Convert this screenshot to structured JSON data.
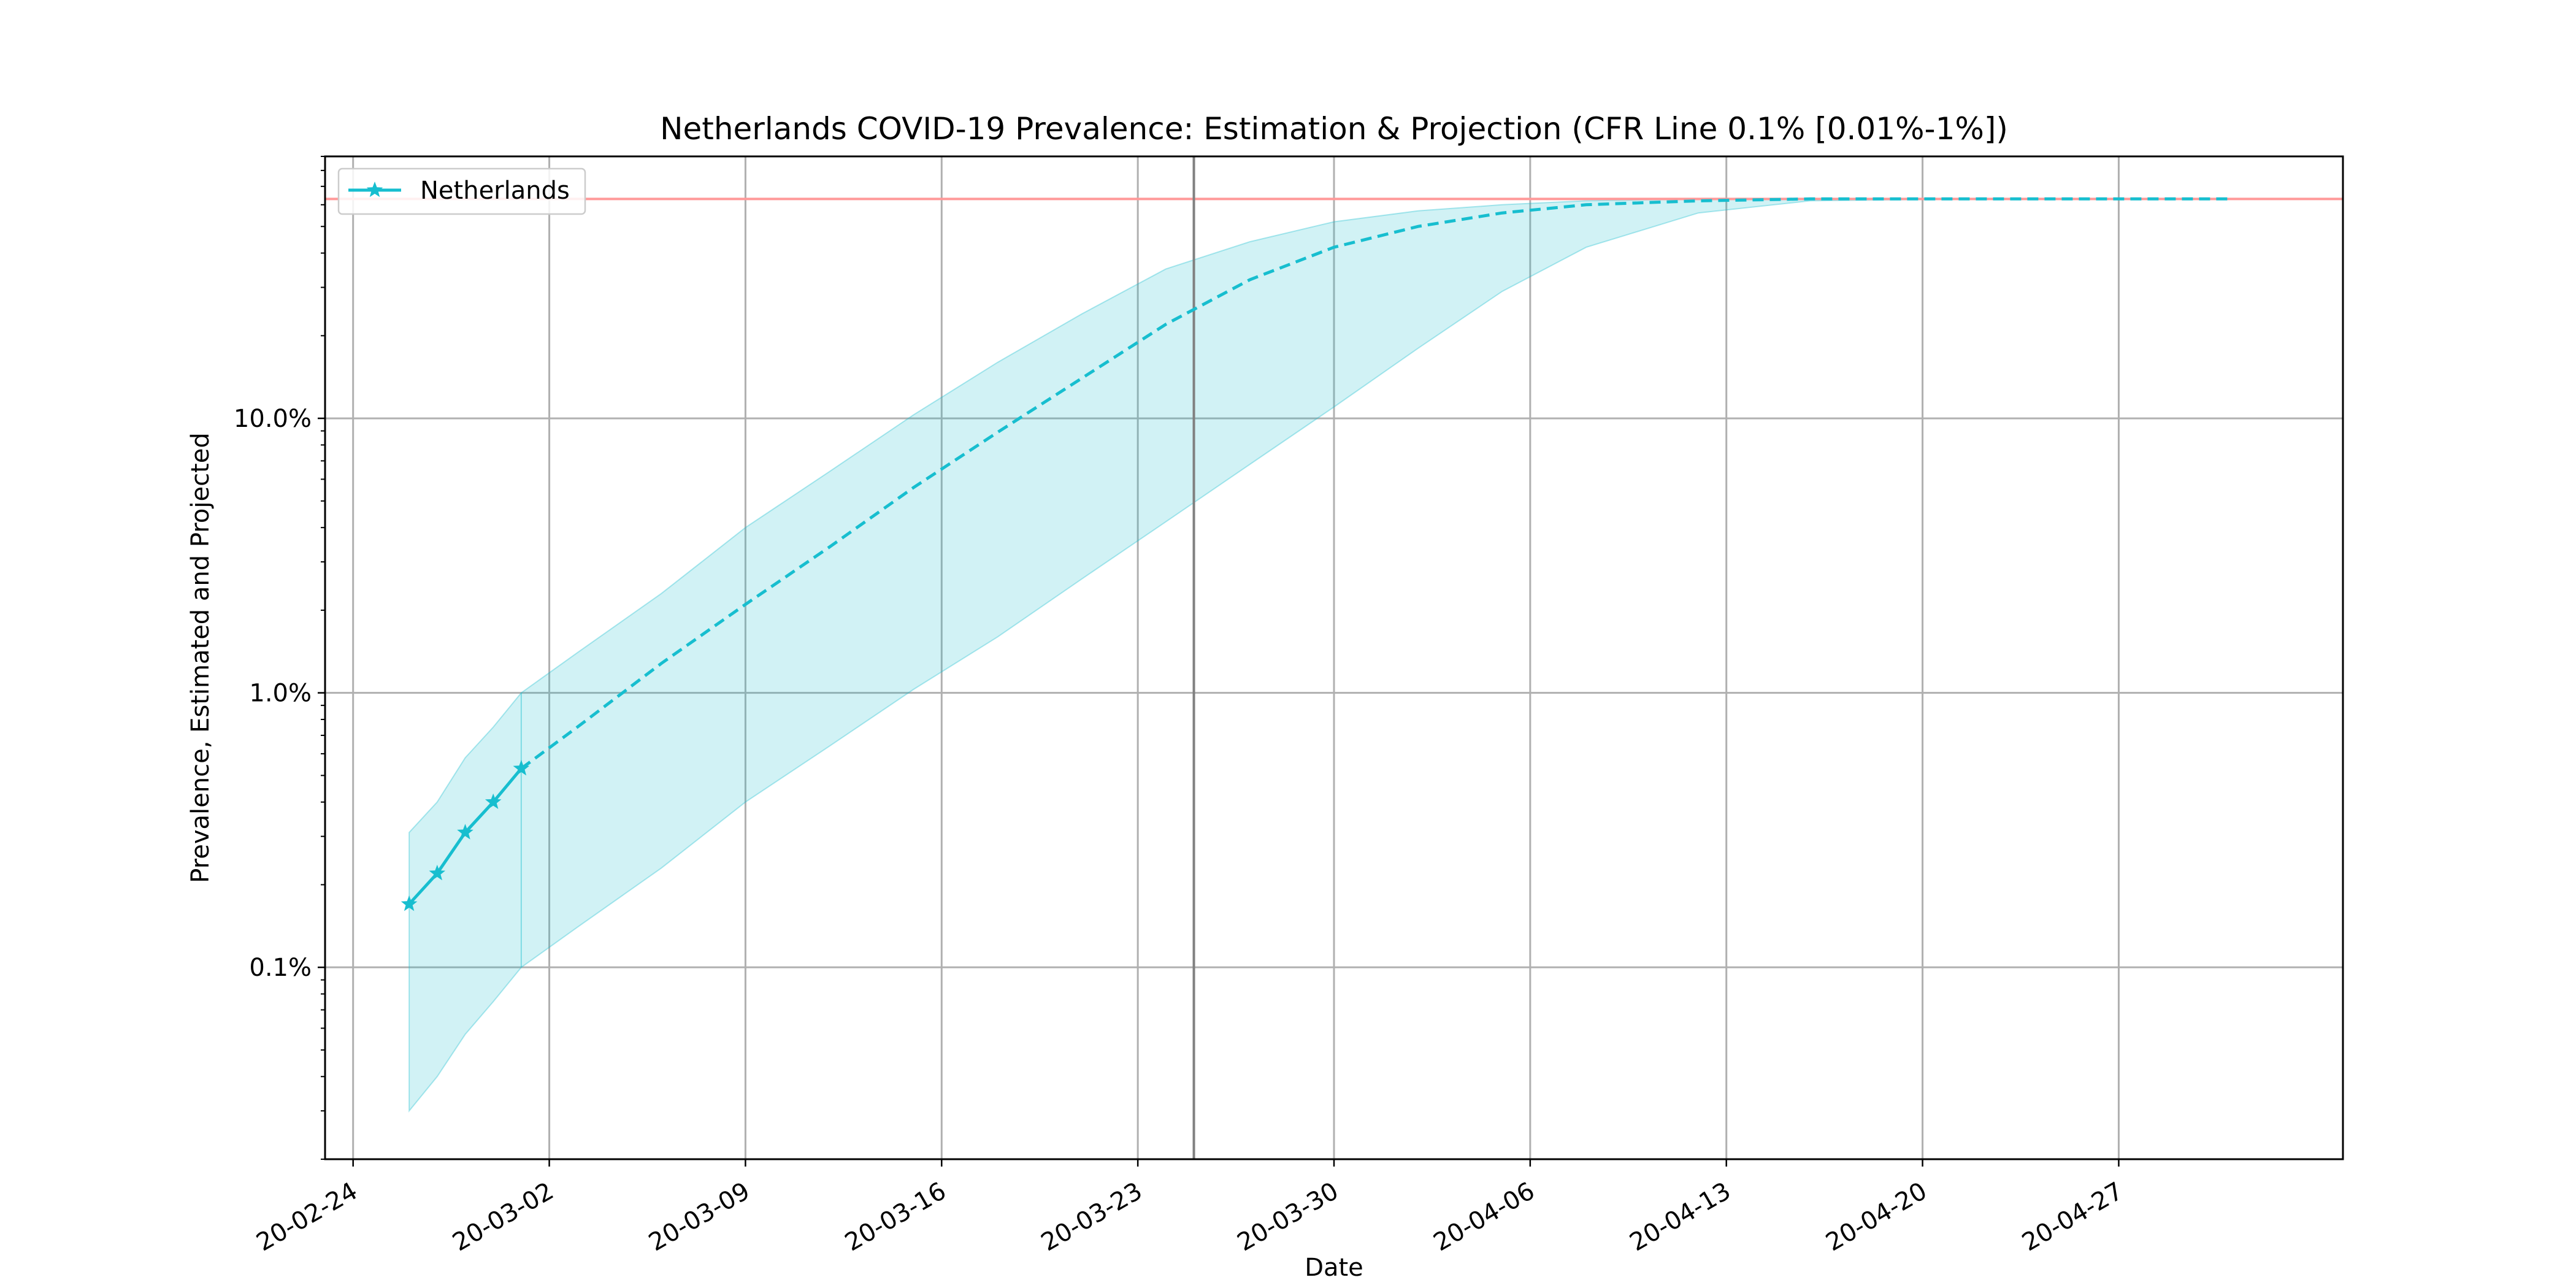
{
  "chart_data": {
    "type": "line",
    "title": "Netherlands COVID-19 Prevalence: Estimation & Projection (CFR Line 0.1% [0.01%-1%])",
    "xlabel": "Date",
    "ylabel": "Prevalence, Estimated and Projected",
    "x_axis": {
      "kind": "date",
      "xlim": [
        "2020-02-23",
        "2020-05-05"
      ],
      "ticks": [
        "2020-02-24",
        "2020-03-02",
        "2020-03-09",
        "2020-03-16",
        "2020-03-23",
        "2020-03-30",
        "2020-04-06",
        "2020-04-13",
        "2020-04-20",
        "2020-04-27"
      ],
      "tick_labels": [
        "20-02-24",
        "20-03-02",
        "20-03-09",
        "20-03-16",
        "20-03-23",
        "20-03-30",
        "20-04-06",
        "20-04-13",
        "20-04-20",
        "20-04-27"
      ]
    },
    "y_axis": {
      "scale": "log",
      "ylim": [
        0.0002,
        0.9
      ],
      "ticks": [
        0.001,
        0.01,
        0.1
      ],
      "tick_labels": [
        "0.1%",
        "1.0%",
        "10.0%"
      ]
    },
    "grid": true,
    "legend": {
      "position": "top-left",
      "entries": [
        "Netherlands"
      ]
    },
    "series": [
      {
        "name": "Netherlands",
        "style": "solid-star",
        "color": "#17becf",
        "x": [
          "2020-02-26",
          "2020-02-27",
          "2020-02-28",
          "2020-02-29",
          "2020-03-01"
        ],
        "y": [
          0.0017,
          0.0022,
          0.0031,
          0.004,
          0.0053
        ]
      },
      {
        "name": "",
        "style": "dashed",
        "color": "#17becf",
        "x": [
          "2020-03-01",
          "2020-03-03",
          "2020-03-06",
          "2020-03-09",
          "2020-03-12",
          "2020-03-15",
          "2020-03-18",
          "2020-03-21",
          "2020-03-24",
          "2020-03-27",
          "2020-03-30",
          "2020-04-02",
          "2020-04-05",
          "2020-04-08",
          "2020-04-12",
          "2020-04-16",
          "2020-04-22",
          "2020-05-01"
        ],
        "y": [
          0.0053,
          0.0075,
          0.0128,
          0.021,
          0.034,
          0.056,
          0.089,
          0.14,
          0.22,
          0.32,
          0.42,
          0.5,
          0.56,
          0.6,
          0.62,
          0.63,
          0.63,
          0.63
        ]
      }
    ],
    "band": {
      "color": "#17becf",
      "x": [
        "2020-02-26",
        "2020-02-27",
        "2020-02-28",
        "2020-02-29",
        "2020-03-01",
        "2020-03-03",
        "2020-03-06",
        "2020-03-09",
        "2020-03-12",
        "2020-03-15",
        "2020-03-18",
        "2020-03-21",
        "2020-03-24",
        "2020-03-27",
        "2020-03-30",
        "2020-04-02",
        "2020-04-05",
        "2020-04-08",
        "2020-04-12",
        "2020-04-16",
        "2020-04-22",
        "2020-05-01"
      ],
      "upper": [
        0.0031,
        0.004,
        0.0058,
        0.0075,
        0.01,
        0.014,
        0.023,
        0.04,
        0.064,
        0.103,
        0.16,
        0.24,
        0.35,
        0.44,
        0.52,
        0.57,
        0.6,
        0.62,
        0.63,
        0.63,
        0.63,
        0.63
      ],
      "lower": [
        0.0003,
        0.0004,
        0.00057,
        0.00075,
        0.001,
        0.0014,
        0.0023,
        0.004,
        0.0064,
        0.0103,
        0.016,
        0.026,
        0.042,
        0.068,
        0.11,
        0.18,
        0.29,
        0.42,
        0.56,
        0.62,
        0.63,
        0.63
      ]
    },
    "reference_lines": {
      "horizontal": {
        "y": 0.63,
        "color": "#ff9999"
      },
      "vertical": {
        "x": "2020-03-25",
        "color": "#808080"
      }
    }
  }
}
